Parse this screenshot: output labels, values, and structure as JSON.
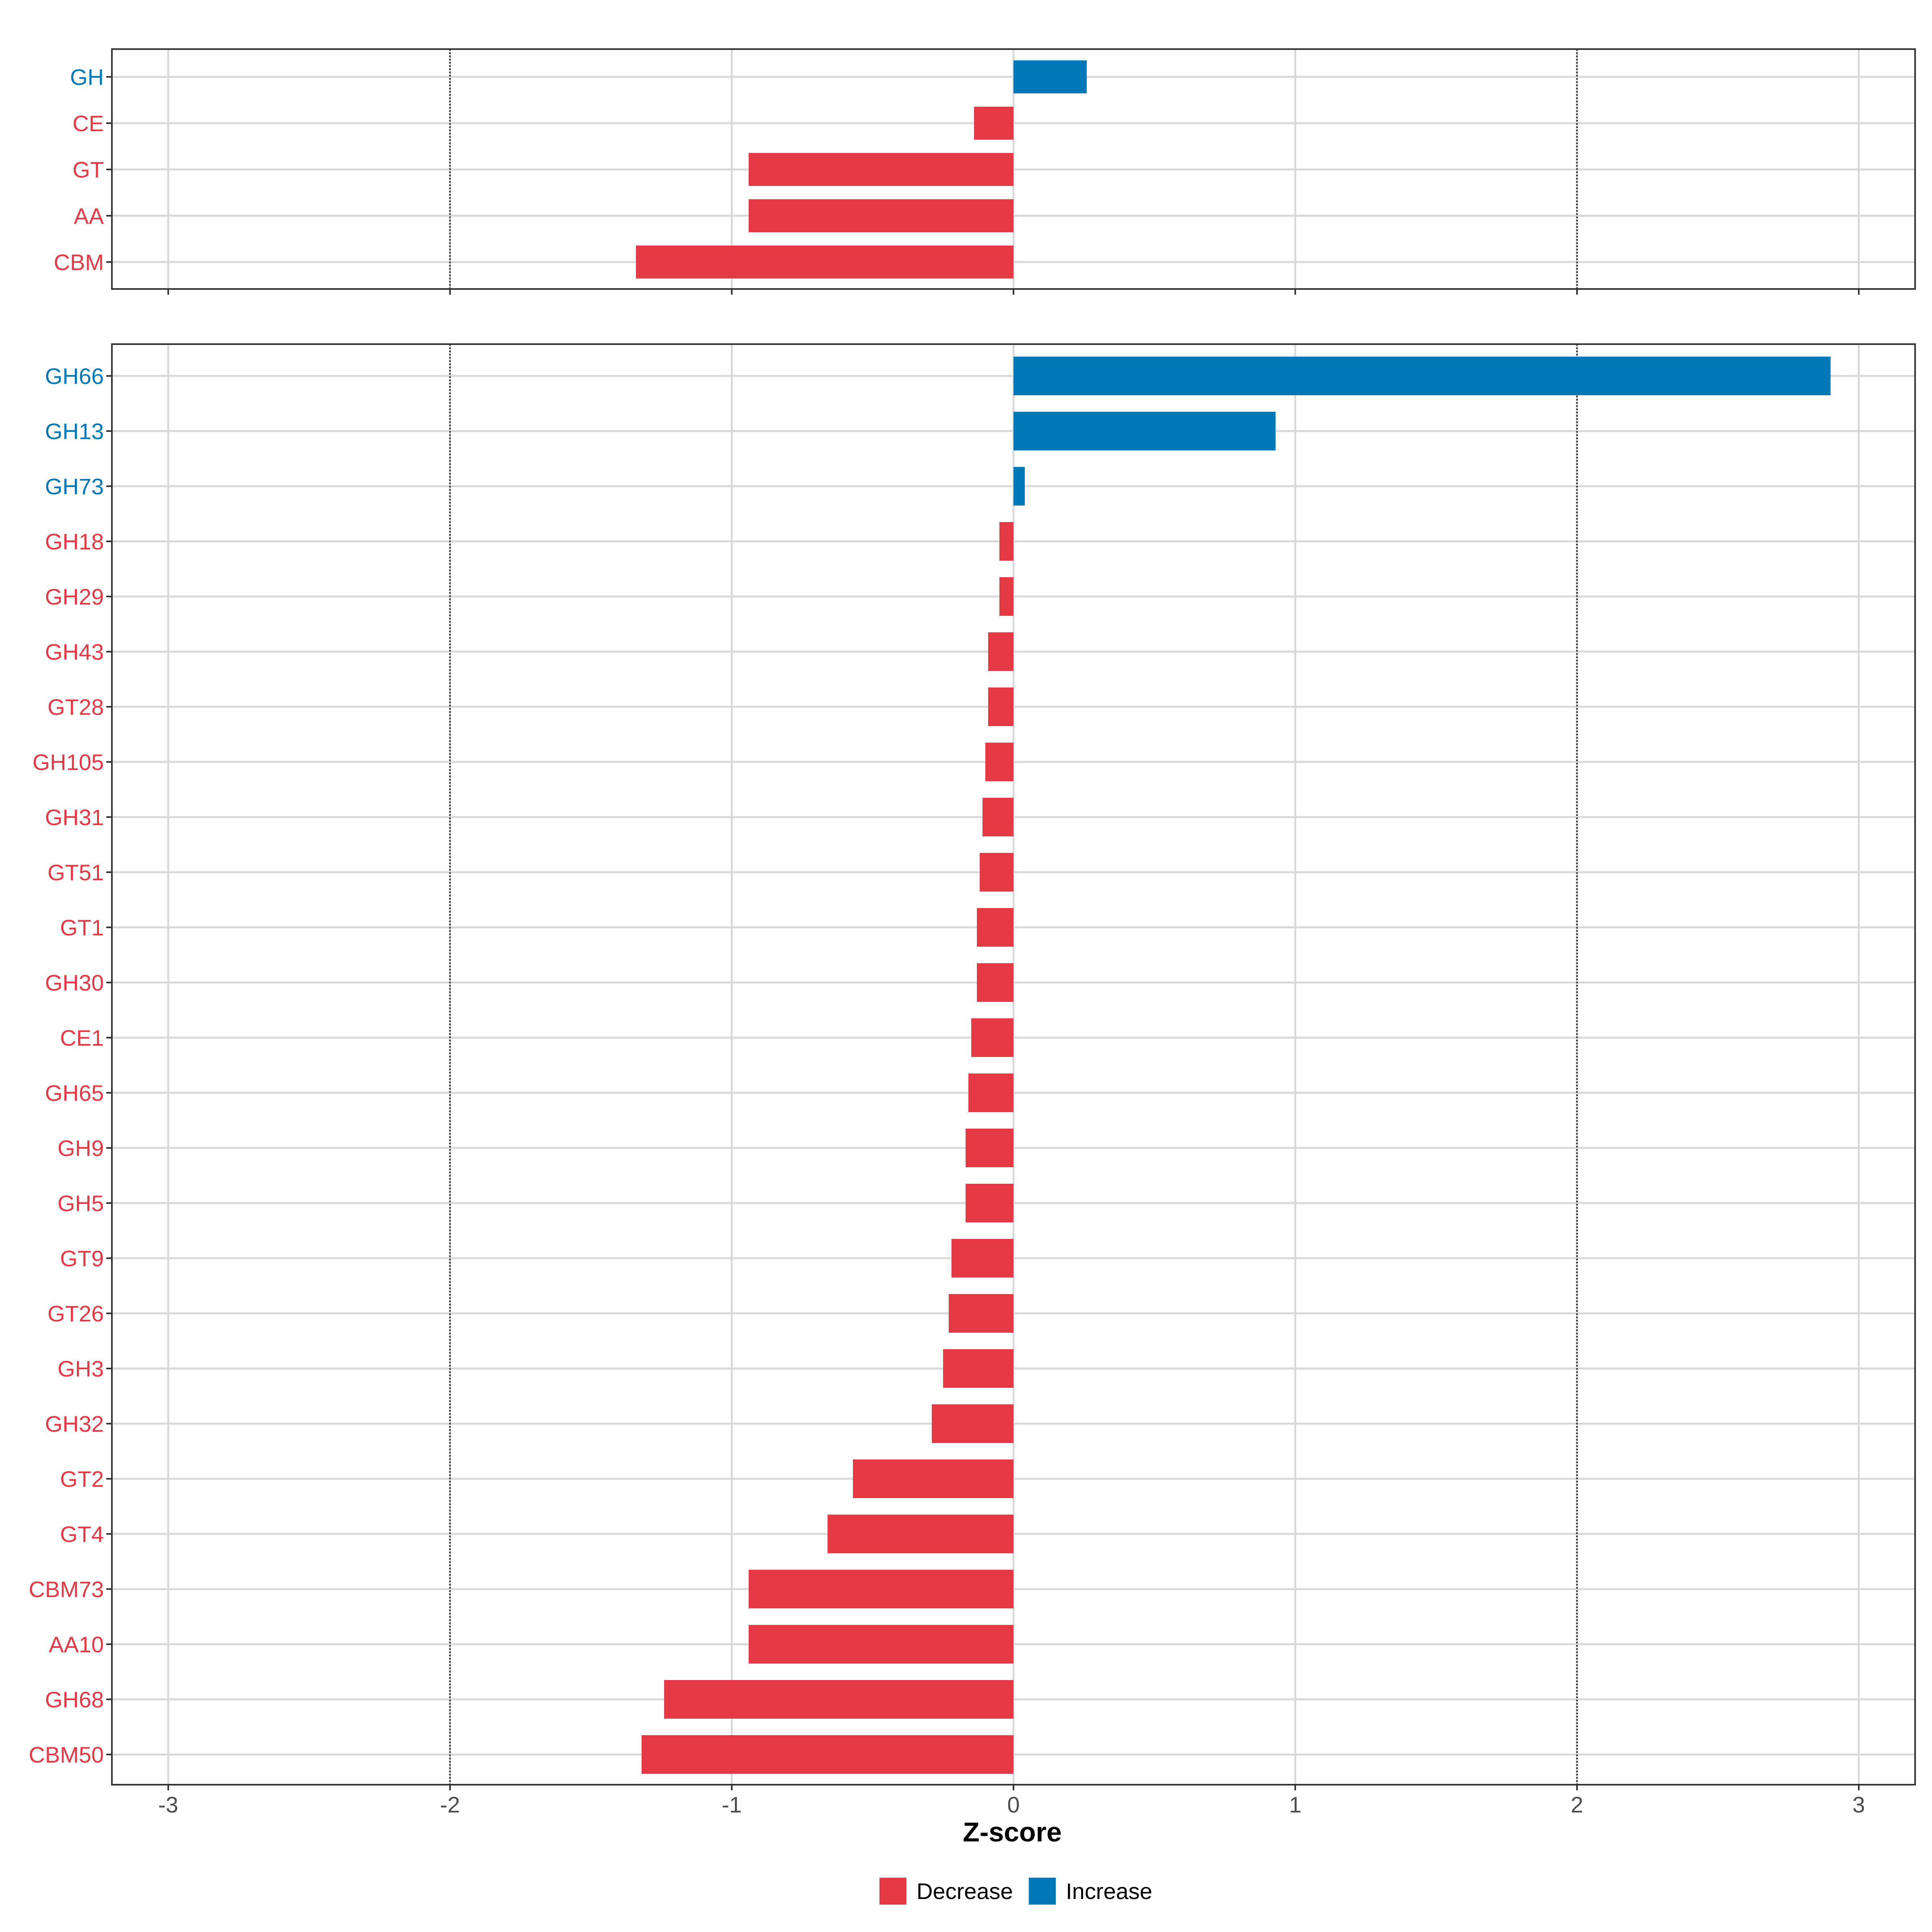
{
  "chart_data": [
    {
      "type": "bar",
      "orientation": "horizontal",
      "panel": "top",
      "categories": [
        "GH",
        "CE",
        "GT",
        "AA",
        "CBM"
      ],
      "values": [
        0.26,
        -0.14,
        -0.94,
        -0.94,
        -1.34
      ],
      "directions": [
        "Increase",
        "Decrease",
        "Decrease",
        "Decrease",
        "Decrease"
      ],
      "xlim": [
        -3.2,
        3.2
      ],
      "reference_lines": [
        -2,
        2
      ]
    },
    {
      "type": "bar",
      "orientation": "horizontal",
      "panel": "bottom",
      "categories": [
        "GH66",
        "GH13",
        "GH73",
        "GH18",
        "GH29",
        "GH43",
        "GT28",
        "GH105",
        "GH31",
        "GT51",
        "GT1",
        "GH30",
        "CE1",
        "GH65",
        "GH9",
        "GH5",
        "GT9",
        "GT26",
        "GH3",
        "GH32",
        "GT2",
        "GT4",
        "CBM73",
        "AA10",
        "GH68",
        "CBM50"
      ],
      "values": [
        2.9,
        0.93,
        0.04,
        -0.05,
        -0.05,
        -0.09,
        -0.09,
        -0.1,
        -0.11,
        -0.12,
        -0.13,
        -0.13,
        -0.15,
        -0.16,
        -0.17,
        -0.17,
        -0.22,
        -0.23,
        -0.25,
        -0.29,
        -0.57,
        -0.66,
        -0.94,
        -0.94,
        -1.24,
        -1.32
      ],
      "directions": [
        "Increase",
        "Increase",
        "Increase",
        "Decrease",
        "Decrease",
        "Decrease",
        "Decrease",
        "Decrease",
        "Decrease",
        "Decrease",
        "Decrease",
        "Decrease",
        "Decrease",
        "Decrease",
        "Decrease",
        "Decrease",
        "Decrease",
        "Decrease",
        "Decrease",
        "Decrease",
        "Decrease",
        "Decrease",
        "Decrease",
        "Decrease",
        "Decrease",
        "Decrease"
      ],
      "xlim": [
        -3.2,
        3.2
      ],
      "reference_lines": [
        -2,
        2
      ]
    }
  ],
  "axis": {
    "xlabel": "Z-score",
    "xticks": [
      -3,
      -2,
      -1,
      0,
      1,
      2,
      3
    ],
    "xtick_labels": [
      "-3",
      "-2",
      "-1",
      "0",
      "1",
      "2",
      "3"
    ]
  },
  "legend": {
    "position": "bottom",
    "items": [
      {
        "label": "Decrease",
        "color": "#E63946"
      },
      {
        "label": "Increase",
        "color": "#0077B6"
      }
    ]
  },
  "colors": {
    "Decrease": "#E63946",
    "Increase": "#0077B6",
    "grid": "#D9D9D9",
    "reference_line": "#333333"
  }
}
